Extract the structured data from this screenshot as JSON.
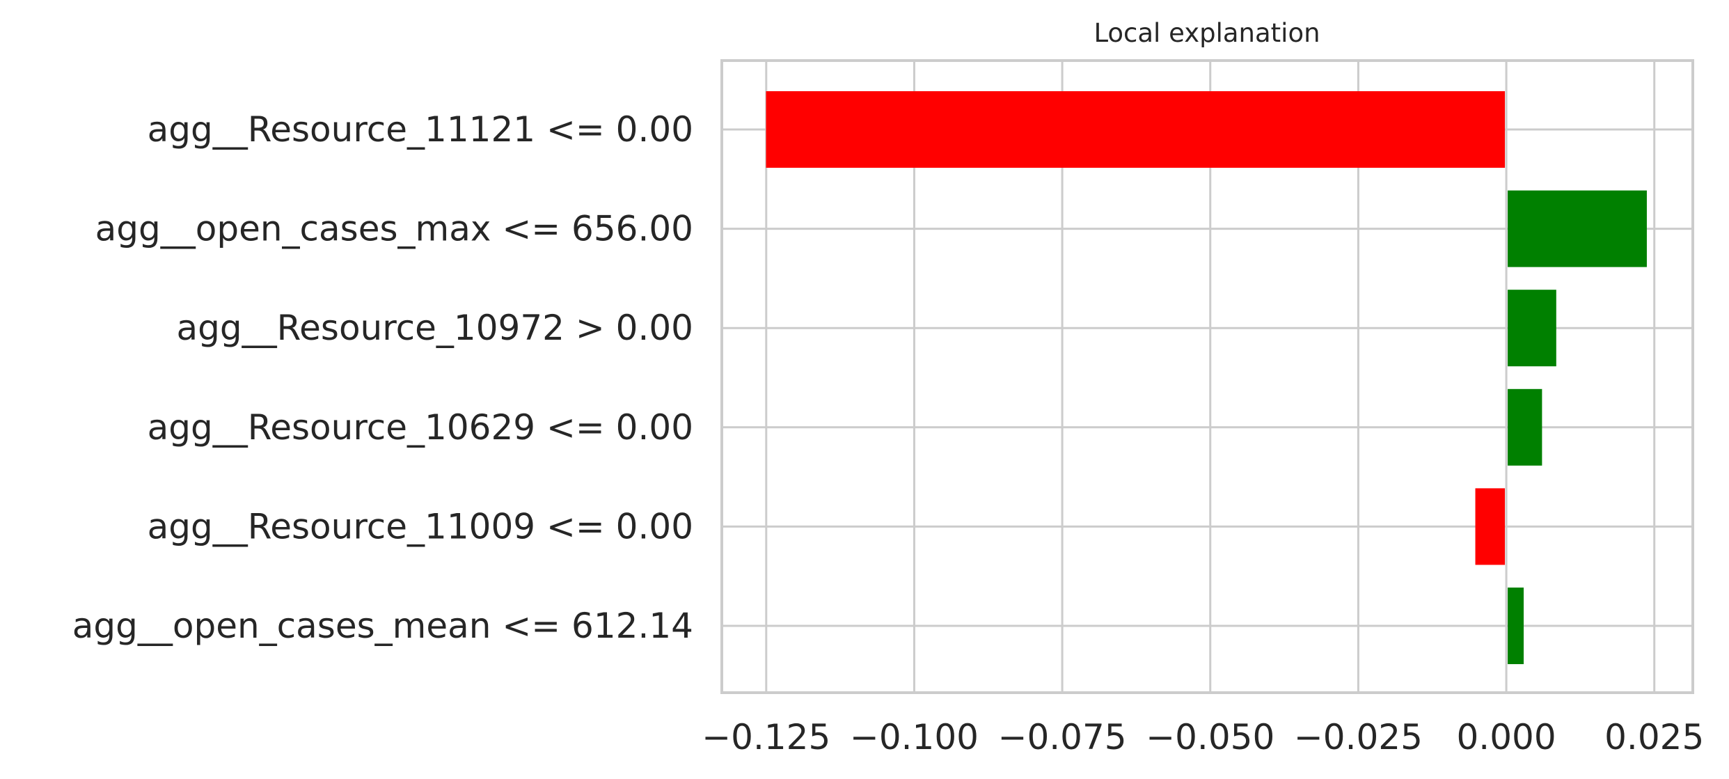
{
  "chart_data": {
    "type": "bar",
    "orientation": "horizontal",
    "title": "Local explanation",
    "xlabel": "",
    "ylabel": "",
    "categories": [
      "agg__Resource_11121 <= 0.00",
      "agg__open_cases_max <= 656.00",
      "agg__Resource_10972 > 0.00",
      "agg__Resource_10629 <= 0.00",
      "agg__Resource_11009 <= 0.00",
      "agg__open_cases_mean <= 612.14"
    ],
    "values": [
      -0.1248,
      0.0235,
      0.0082,
      0.0058,
      -0.005,
      0.0027
    ],
    "xlim": [
      -0.1325,
      0.0315
    ],
    "xticks": [
      -0.125,
      -0.1,
      -0.075,
      -0.05,
      -0.025,
      0.0,
      0.025
    ],
    "xtick_labels": [
      "−0.125",
      "−0.100",
      "−0.075",
      "−0.050",
      "−0.025",
      "0.000",
      "0.025"
    ],
    "grid": true,
    "colors": {
      "positive": "#008000",
      "negative": "#ff0000",
      "grid": "#cccccc",
      "frame": "#cccccc",
      "text": "#262626",
      "background": "#ffffff"
    }
  }
}
